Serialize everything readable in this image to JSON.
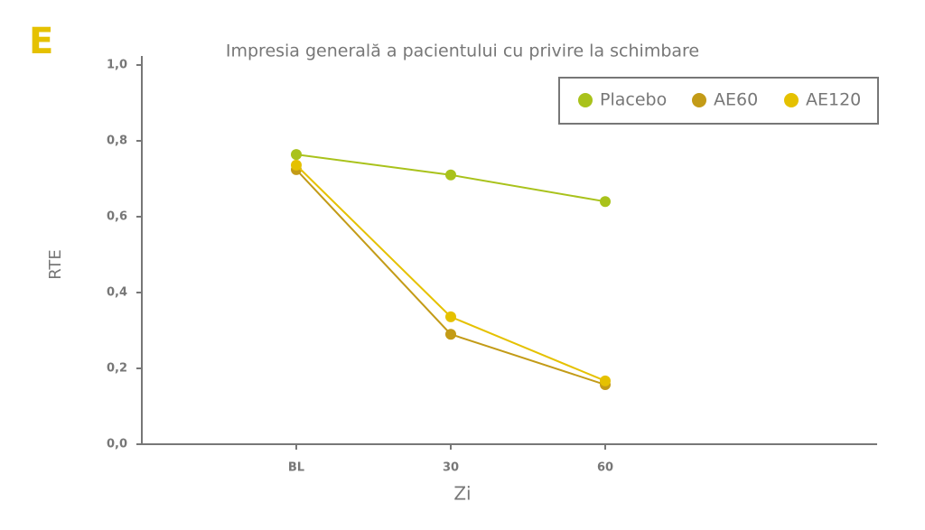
{
  "panel_label": "E",
  "chart_data": {
    "type": "line",
    "title": "Impresia generală a pacientului cu privire la schimbare",
    "xlabel": "Zi",
    "ylabel": "RTE",
    "categories": [
      "BL",
      "30",
      "60"
    ],
    "series": [
      {
        "name": "Placebo",
        "color": "#a9c21b",
        "values": [
          0.764,
          0.71,
          0.64
        ]
      },
      {
        "name": "AE60",
        "color": "#c39b17",
        "values": [
          0.724,
          0.29,
          0.157
        ]
      },
      {
        "name": "AE120",
        "color": "#e5c100",
        "values": [
          0.736,
          0.336,
          0.167
        ]
      }
    ],
    "ylim": [
      0,
      1
    ],
    "yticks": [
      {
        "value": 0,
        "label": "0,0"
      },
      {
        "value": 0.2,
        "label": "0,2"
      },
      {
        "value": 0.4,
        "label": "0,4"
      },
      {
        "value": 0.6,
        "label": "0,6"
      },
      {
        "value": 0.8,
        "label": "0,8"
      },
      {
        "value": 1,
        "label": "1,0"
      }
    ],
    "legend": "upper right"
  }
}
